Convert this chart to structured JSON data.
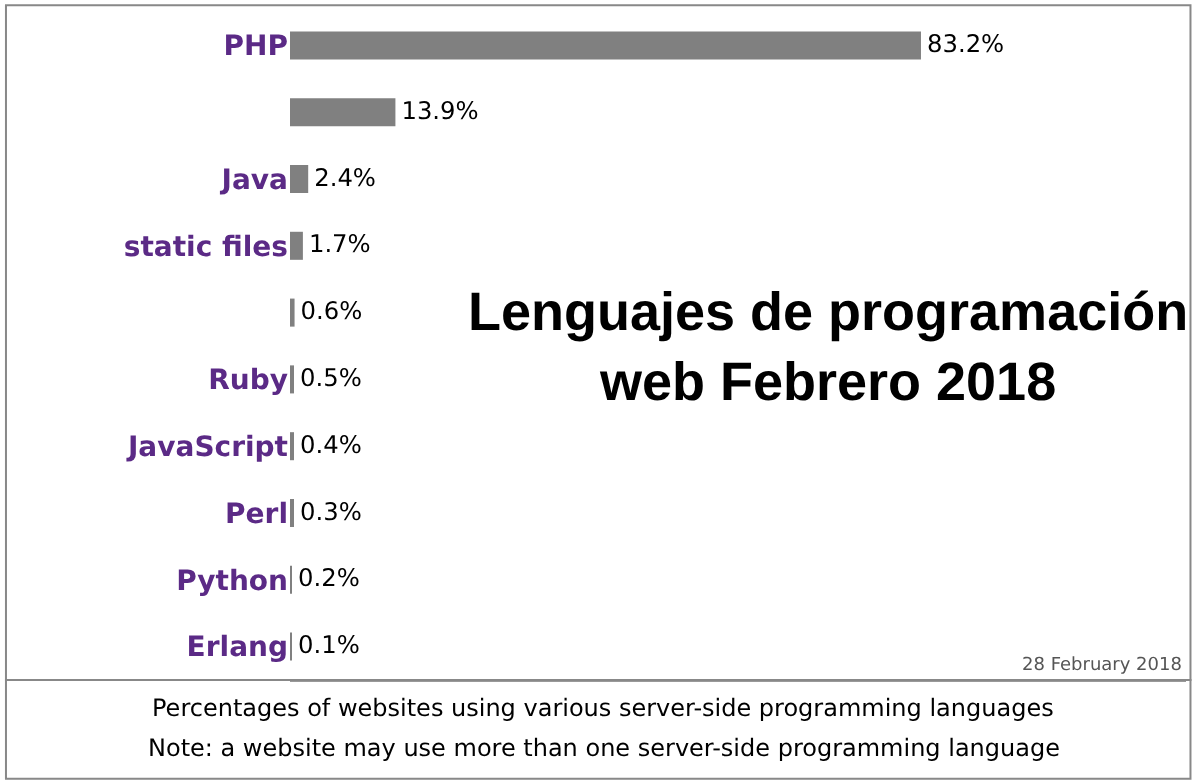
{
  "chart_data": {
    "type": "bar",
    "orientation": "horizontal",
    "title": "Lenguajes de programación web Febrero 2018",
    "categories": [
      "PHP",
      null,
      "Java",
      "static files",
      null,
      "Ruby",
      "JavaScript",
      "Perl",
      "Python",
      "Erlang"
    ],
    "values": [
      83.2,
      13.9,
      2.4,
      1.7,
      0.6,
      0.5,
      0.4,
      0.3,
      0.2,
      0.1
    ],
    "value_labels": [
      "83.2%",
      "13.9%",
      "2.4%",
      "1.7%",
      "0.6%",
      "0.5%",
      "0.4%",
      "0.3%",
      "0.2%",
      "0.1%"
    ],
    "color": "#808080",
    "grid": false,
    "legend": false,
    "annotations": [
      "28 February 2018",
      "Percentages of websites using various server-side programming languages",
      "Note: a website may use more than one server-side programming language"
    ]
  }
}
